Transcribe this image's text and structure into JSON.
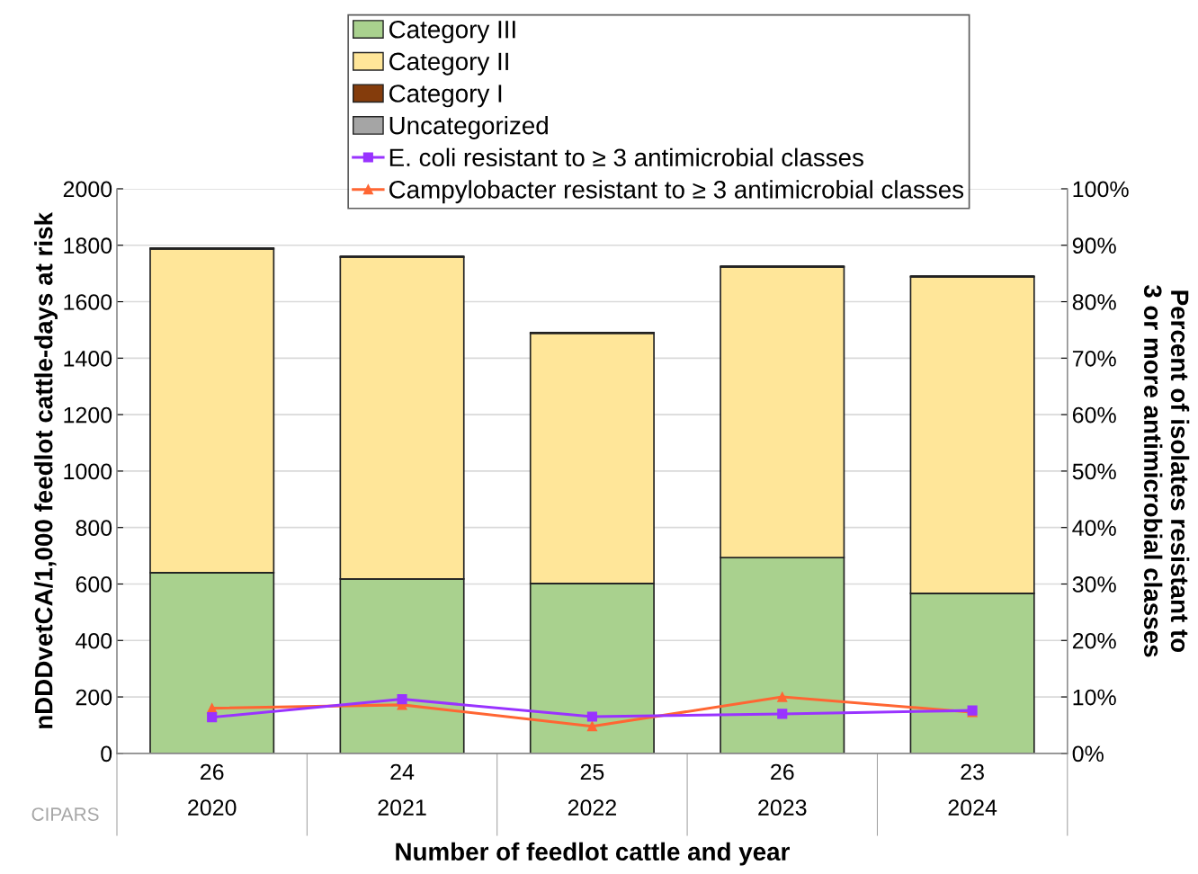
{
  "chart_data": {
    "type": "bar",
    "stacked": true,
    "categories": [
      "26\n2020",
      "24\n2021",
      "25\n2022",
      "26\n2023",
      "23\n2024"
    ],
    "xlabel": "Number of feedlot cattle and year",
    "ylabel": "nDDDvetCA/1,000 feedlot cattle-days at risk",
    "y2label": "Percent of isolates resistant to\n3 or more antimicrobial classes",
    "ylim": [
      0,
      2000
    ],
    "yticks": [
      0,
      200,
      400,
      600,
      800,
      1000,
      1200,
      1400,
      1600,
      1800,
      2000
    ],
    "y2lim": [
      0,
      100
    ],
    "y2ticks": [
      {
        "value": 0,
        "label": "0%"
      },
      {
        "value": 10,
        "label": "10%"
      },
      {
        "value": 20,
        "label": "20%"
      },
      {
        "value": 30,
        "label": "30%"
      },
      {
        "value": 40,
        "label": "40%"
      },
      {
        "value": 50,
        "label": "50%"
      },
      {
        "value": 60,
        "label": "60%"
      },
      {
        "value": 70,
        "label": "70%"
      },
      {
        "value": 80,
        "label": "80%"
      },
      {
        "value": 90,
        "label": "90%"
      },
      {
        "value": 100,
        "label": "100%"
      }
    ],
    "grid": "y",
    "legend": "top",
    "series": [
      {
        "name": "Category III",
        "color": "#a9d18e",
        "values": [
          640,
          618,
          602,
          694,
          567
        ]
      },
      {
        "name": "Category II",
        "color": "#ffe699",
        "values": [
          1147,
          1140,
          886,
          1029,
          1121
        ]
      },
      {
        "name": "Category I",
        "color": "#843c0c",
        "values": [
          3,
          3,
          3,
          3,
          3
        ]
      },
      {
        "name": "Uncategorized",
        "color": "#a5a5a5",
        "values": [
          0,
          0,
          0,
          0,
          0
        ]
      },
      {
        "name": "E. coli resistant to ≥ 3 antimicrobial classes",
        "type": "line",
        "axis": "y2",
        "marker": "square",
        "color": "#9933ff",
        "values": [
          6.4,
          9.6,
          6.5,
          7.0,
          7.6
        ]
      },
      {
        "name": "Campylobacter resistant to ≥ 3 antimicrobial classes",
        "type": "line",
        "axis": "y2",
        "marker": "triangle",
        "color": "#ff6633",
        "values": [
          8.0,
          8.6,
          4.8,
          10.0,
          7.3
        ]
      }
    ],
    "annotations": [
      "CIPARS"
    ]
  }
}
